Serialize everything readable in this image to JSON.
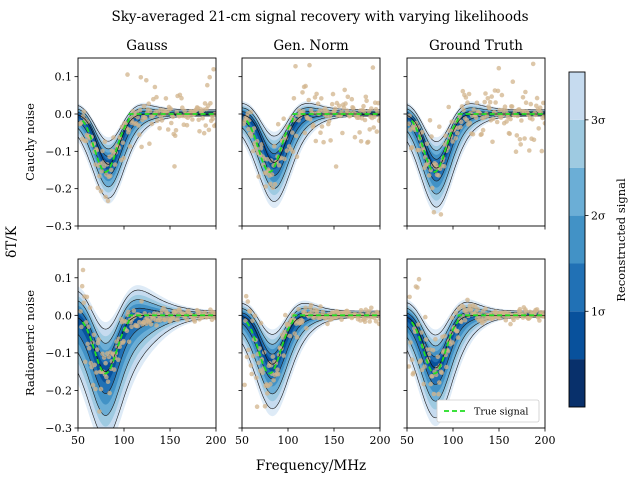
{
  "chart_data": {
    "type": "scatter",
    "title": "Sky-averaged 21-cm signal recovery with varying likelihoods",
    "xlabel": "Frequency/MHz",
    "ylabel": "δT/K",
    "xlim": [
      50,
      200
    ],
    "ylim": [
      -0.3,
      0.15
    ],
    "xticks": [
      50,
      100,
      150,
      200
    ],
    "yticks": [
      -0.3,
      -0.2,
      -0.1,
      0.0,
      0.1
    ],
    "x_tick_labels": [
      "50",
      "100",
      "150",
      "200"
    ],
    "y_tick_labels": [
      "−0.3",
      "−0.2",
      "−0.1",
      "0.0",
      "0.1"
    ],
    "column_titles": [
      "Gauss",
      "Gen. Norm",
      "Ground Truth"
    ],
    "row_labels": [
      "Cauchy noise",
      "Radiometric noise"
    ],
    "legend": {
      "label": "True signal",
      "placement": "lower-right"
    },
    "true_signal": {
      "amplitude": -0.155,
      "center_MHz": 80,
      "width_MHz": 12,
      "start_MHz": 55,
      "end_MHz": 105
    },
    "colorbar": {
      "label": "Reconstructed signal",
      "tick_labels": [
        "1σ",
        "2σ",
        "3σ"
      ],
      "tick_levels": [
        1,
        2,
        3
      ],
      "range": [
        0,
        3.5
      ],
      "levels": [
        0.5,
        1.0,
        1.5,
        2.0,
        2.5,
        3.0
      ],
      "colors": [
        "#08306b",
        "#08519c",
        "#2171b5",
        "#4292c6",
        "#6baed6",
        "#9ecae1",
        "#c6dbef",
        "#deebf7",
        "#f3f8fd"
      ]
    },
    "panels": [
      {
        "row": 0,
        "col": 0,
        "center_MHz": 83,
        "median_depth": -0.135,
        "sigma_depth": 0.03,
        "sigma_width": 1.8,
        "noise": "cauchy",
        "seed": 11
      },
      {
        "row": 0,
        "col": 1,
        "center_MHz": 85,
        "median_depth": -0.13,
        "sigma_depth": 0.035,
        "sigma_width": 1.8,
        "noise": "cauchy",
        "seed": 23
      },
      {
        "row": 0,
        "col": 2,
        "center_MHz": 82,
        "median_depth": -0.145,
        "sigma_depth": 0.035,
        "sigma_width": 1.8,
        "noise": "cauchy",
        "seed": 37
      },
      {
        "row": 1,
        "col": 0,
        "center_MHz": 80,
        "median_depth": -0.15,
        "sigma_depth": 0.06,
        "sigma_width": 2.5,
        "noise": "radiometric",
        "seed": 41
      },
      {
        "row": 1,
        "col": 1,
        "center_MHz": 83,
        "median_depth": -0.13,
        "sigma_depth": 0.04,
        "sigma_width": 1.8,
        "noise": "radiometric",
        "seed": 53
      },
      {
        "row": 1,
        "col": 2,
        "center_MHz": 81,
        "median_depth": -0.14,
        "sigma_depth": 0.045,
        "sigma_width": 1.8,
        "noise": "radiometric",
        "seed": 67
      }
    ],
    "data_point_color": "#d2b48c",
    "true_signal_color": "#22dd22"
  }
}
